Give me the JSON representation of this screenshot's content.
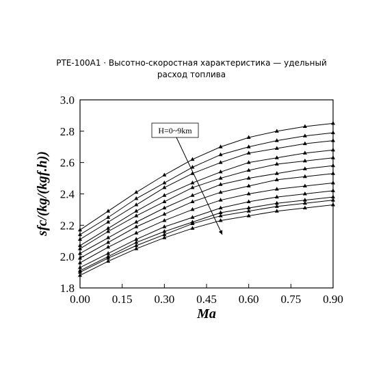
{
  "chart_data": {
    "type": "line",
    "title": "PTE-100A1 · Высотно-скоростная характеристика — удельный расход топлива",
    "x_label": "Ma",
    "y_label": "sfc/(kg/(kgf.h))",
    "annotation": "H=0~9km",
    "x": [
      0,
      0.1,
      0.2,
      0.3,
      0.4,
      0.5,
      0.6,
      0.7,
      0.8,
      0.9
    ],
    "xlim": [
      0,
      0.9
    ],
    "ylim": [
      1.8,
      3.0
    ],
    "xticks": [
      {
        "value": 0,
        "label": "0.00"
      },
      {
        "value": 0.15,
        "label": "0.15"
      },
      {
        "value": 0.3,
        "label": "0.30"
      },
      {
        "value": 0.45,
        "label": "0.45"
      },
      {
        "value": 0.6,
        "label": "0.60"
      },
      {
        "value": 0.75,
        "label": "0.75"
      },
      {
        "value": 0.9,
        "label": "0.90"
      }
    ],
    "yticks": [
      {
        "value": 1.8,
        "label": "1.8"
      },
      {
        "value": 2,
        "label": "2.0"
      },
      {
        "value": 2.2,
        "label": "2.2"
      },
      {
        "value": 2.4,
        "label": "2.4"
      },
      {
        "value": 2.6,
        "label": "2.6"
      },
      {
        "value": 2.8,
        "label": "2.8"
      },
      {
        "value": 3,
        "label": "3.0"
      }
    ],
    "grid": false,
    "series": [
      {
        "color": "#000000",
        "values": [
          2.17,
          2.29,
          2.41,
          2.52,
          2.62,
          2.7,
          2.76,
          2.8,
          2.83,
          2.85
        ]
      },
      {
        "color": "#000000",
        "values": [
          2.14,
          2.25,
          2.37,
          2.47,
          2.57,
          2.65,
          2.7,
          2.74,
          2.77,
          2.79
        ]
      },
      {
        "color": "#000000",
        "values": [
          2.11,
          2.22,
          2.33,
          2.44,
          2.53,
          2.6,
          2.66,
          2.69,
          2.72,
          2.74
        ]
      },
      {
        "color": "#000000",
        "values": [
          2.07,
          2.18,
          2.29,
          2.39,
          2.47,
          2.54,
          2.6,
          2.63,
          2.66,
          2.68
        ]
      },
      {
        "color": "#000000",
        "values": [
          2.05,
          2.16,
          2.26,
          2.35,
          2.44,
          2.5,
          2.55,
          2.59,
          2.61,
          2.63
        ]
      },
      {
        "color": "#000000",
        "values": [
          2.02,
          2.12,
          2.22,
          2.31,
          2.39,
          2.46,
          2.5,
          2.53,
          2.56,
          2.58
        ]
      },
      {
        "color": "#000000",
        "values": [
          1.99,
          2.09,
          2.19,
          2.27,
          2.35,
          2.41,
          2.45,
          2.49,
          2.51,
          2.53
        ]
      },
      {
        "color": "#000000",
        "values": [
          1.96,
          2.06,
          2.15,
          2.23,
          2.3,
          2.36,
          2.4,
          2.43,
          2.45,
          2.47
        ]
      },
      {
        "color": "#000000",
        "values": [
          1.93,
          2.02,
          2.11,
          2.19,
          2.25,
          2.31,
          2.35,
          2.38,
          2.4,
          2.42
        ]
      },
      {
        "color": "#000000",
        "values": [
          1.91,
          2.0,
          2.09,
          2.16,
          2.22,
          2.28,
          2.31,
          2.34,
          2.36,
          2.38
        ]
      },
      {
        "color": "#000000",
        "values": [
          1.9,
          1.99,
          2.07,
          2.14,
          2.21,
          2.26,
          2.29,
          2.32,
          2.34,
          2.36
        ]
      },
      {
        "color": "#000000",
        "values": [
          1.88,
          1.97,
          2.05,
          2.12,
          2.18,
          2.23,
          2.26,
          2.29,
          2.31,
          2.33
        ]
      }
    ]
  }
}
